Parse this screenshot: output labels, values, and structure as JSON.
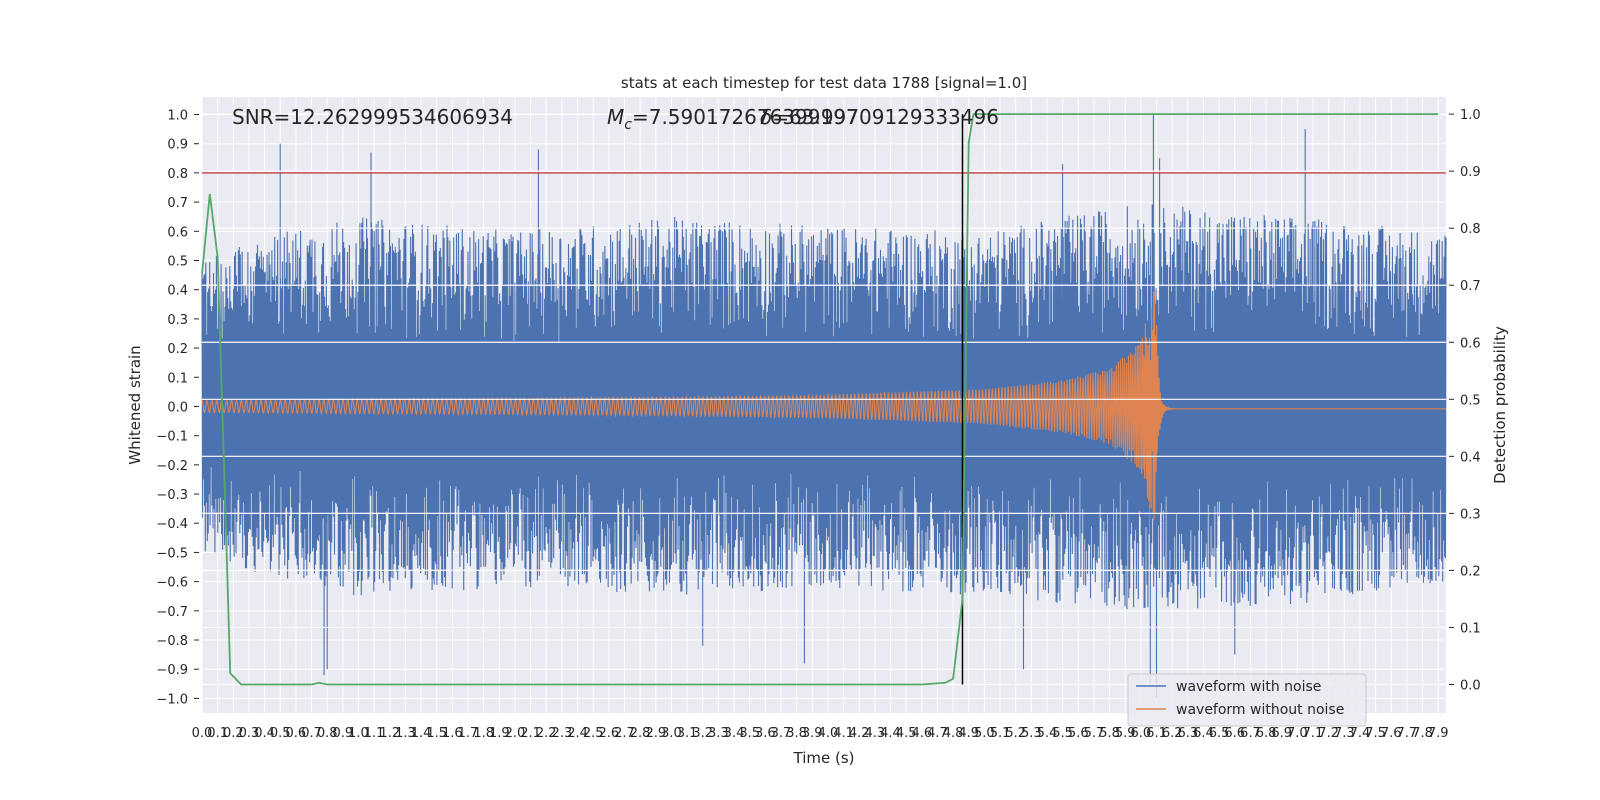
{
  "chart_data": {
    "type": "line",
    "title": "stats at each timestep for test data 1788 [signal=1.0]",
    "xlabel": "Time (s)",
    "ylabel": "Whitened strain",
    "y2label": "Detection probability",
    "xlim": [
      0.0,
      7.95
    ],
    "ylim": [
      -1.05,
      1.06
    ],
    "y2lim": [
      -0.05,
      1.03
    ],
    "x_ticks": [
      0.0,
      0.1,
      0.2,
      0.3,
      0.4,
      0.5,
      0.6,
      0.7,
      0.8,
      0.9,
      1.0,
      1.1,
      1.2,
      1.3,
      1.4,
      1.5,
      1.6,
      1.7,
      1.8,
      1.9,
      2.0,
      2.1,
      2.2,
      2.3,
      2.4,
      2.5,
      2.6,
      2.7,
      2.8,
      2.9,
      3.0,
      3.1,
      3.2,
      3.3,
      3.4,
      3.5,
      3.6,
      3.7,
      3.8,
      3.9,
      4.0,
      4.1,
      4.2,
      4.3,
      4.4,
      4.5,
      4.6,
      4.7,
      4.8,
      4.9,
      5.0,
      5.1,
      5.2,
      5.3,
      5.4,
      5.5,
      5.6,
      5.7,
      5.8,
      5.9,
      6.0,
      6.1,
      6.2,
      6.3,
      6.4,
      6.5,
      6.6,
      6.7,
      6.8,
      6.9,
      7.0,
      7.1,
      7.2,
      7.3,
      7.4,
      7.5,
      7.6,
      7.7,
      7.8,
      7.9
    ],
    "y_ticks": [
      -1.0,
      -0.9,
      -0.8,
      -0.7,
      -0.6,
      -0.5,
      -0.4,
      -0.3,
      -0.2,
      -0.1,
      0.0,
      0.1,
      0.2,
      0.3,
      0.4,
      0.5,
      0.6,
      0.7,
      0.8,
      0.9,
      1.0
    ],
    "y2_ticks": [
      0.0,
      0.1,
      0.2,
      0.3,
      0.4,
      0.5,
      0.6,
      0.7,
      0.8,
      0.9,
      1.0
    ],
    "grid": true,
    "legend_position": "lower-right",
    "annotations": {
      "snr": "SNR=12.262999534606934",
      "mc_prefix": "M",
      "mc_sub": "c",
      "mc_value": "=7.590172676399197",
      "overlap": "=63.99709129333496"
    },
    "threshold_line": {
      "y": 0.8,
      "color": "#c44e52"
    },
    "detection_marker": {
      "x": 4.86,
      "color": "#000000"
    },
    "series": [
      {
        "name": "waveform with noise",
        "color": "#4c72b0",
        "kind": "noise",
        "envelope_positive": [
          [
            0.0,
            0.5
          ],
          [
            0.5,
            0.6
          ],
          [
            1.0,
            0.65
          ],
          [
            2.0,
            0.6
          ],
          [
            3.0,
            0.65
          ],
          [
            4.0,
            0.62
          ],
          [
            5.0,
            0.6
          ],
          [
            6.0,
            0.7
          ],
          [
            7.0,
            0.65
          ],
          [
            7.95,
            0.6
          ]
        ],
        "envelope_negative": [
          [
            0.0,
            -0.5
          ],
          [
            0.5,
            -0.6
          ],
          [
            1.0,
            -0.65
          ],
          [
            2.0,
            -0.62
          ],
          [
            3.0,
            -0.65
          ],
          [
            4.0,
            -0.62
          ],
          [
            5.0,
            -0.65
          ],
          [
            6.0,
            -0.7
          ],
          [
            7.0,
            -0.68
          ],
          [
            7.95,
            -0.6
          ]
        ],
        "spikes": [
          [
            0.5,
            0.9
          ],
          [
            1.08,
            0.87
          ],
          [
            2.15,
            0.88
          ],
          [
            6.08,
            1.0
          ],
          [
            6.12,
            0.85
          ],
          [
            5.5,
            0.83
          ],
          [
            7.05,
            0.95
          ],
          [
            0.8,
            -0.9
          ],
          [
            0.78,
            -0.92
          ],
          [
            6.06,
            -0.95
          ],
          [
            6.1,
            -1.0
          ],
          [
            3.85,
            -0.88
          ],
          [
            3.2,
            -0.82
          ],
          [
            6.6,
            -0.85
          ],
          [
            5.25,
            -0.9
          ]
        ]
      },
      {
        "name": "waveform without noise",
        "color": "#dd8452",
        "kind": "chirp",
        "merger_time": 6.1,
        "amplitude_points": [
          [
            0.0,
            0.02
          ],
          [
            1.0,
            0.025
          ],
          [
            2.0,
            0.028
          ],
          [
            3.0,
            0.032
          ],
          [
            4.0,
            0.04
          ],
          [
            5.0,
            0.06
          ],
          [
            5.5,
            0.09
          ],
          [
            5.8,
            0.13
          ],
          [
            6.0,
            0.22
          ],
          [
            6.08,
            0.4
          ],
          [
            6.1,
            0.35
          ]
        ]
      },
      {
        "name": "detection probability",
        "color": "#55a868",
        "axis": "right",
        "points": [
          [
            0.0,
            0.72
          ],
          [
            0.05,
            0.86
          ],
          [
            0.1,
            0.75
          ],
          [
            0.15,
            0.3
          ],
          [
            0.18,
            0.02
          ],
          [
            0.25,
            0.0
          ],
          [
            0.7,
            0.0
          ],
          [
            0.75,
            0.003
          ],
          [
            0.8,
            0.0
          ],
          [
            4.6,
            0.0
          ],
          [
            4.75,
            0.003
          ],
          [
            4.8,
            0.01
          ],
          [
            4.86,
            0.15
          ],
          [
            4.9,
            0.95
          ],
          [
            4.93,
            1.0
          ],
          [
            7.9,
            1.0
          ]
        ]
      }
    ]
  }
}
